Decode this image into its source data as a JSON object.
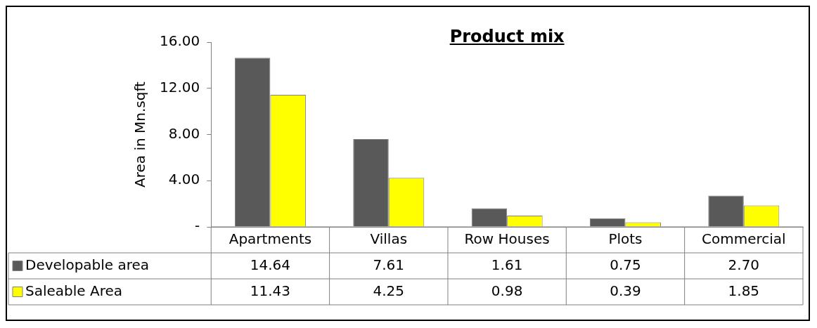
{
  "chart_data": {
    "type": "bar",
    "title": "Product mix",
    "ylabel": "Area in Mn.sqft",
    "categories": [
      "Apartments",
      "Villas",
      "Row Houses",
      "Plots",
      "Commercial"
    ],
    "series": [
      {
        "name": "Developable area",
        "color": "#595959",
        "values": [
          14.64,
          7.61,
          1.61,
          0.75,
          2.7
        ],
        "value_labels": [
          "14.64",
          "7.61",
          "1.61",
          "0.75",
          "2.70"
        ]
      },
      {
        "name": "Saleable Area",
        "color": "#ffff00",
        "values": [
          11.43,
          4.25,
          0.98,
          0.39,
          1.85
        ],
        "value_labels": [
          "11.43",
          "4.25",
          "0.98",
          "0.39",
          "1.85"
        ]
      }
    ],
    "ylim": [
      0,
      16
    ],
    "yticks": [
      {
        "value": 0,
        "label": "-"
      },
      {
        "value": 4,
        "label": "4.00"
      },
      {
        "value": 8,
        "label": "8.00"
      },
      {
        "value": 12,
        "label": "12.00"
      },
      {
        "value": 16,
        "label": "16.00"
      }
    ],
    "grid": false,
    "legend": "bottom"
  }
}
